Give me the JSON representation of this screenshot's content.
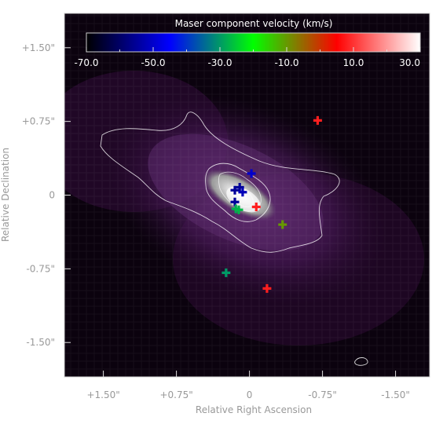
{
  "chart_data": {
    "type": "scatter",
    "title": "",
    "xlabel": "Relative Right Ascension",
    "ylabel": "Relative Declination",
    "xlim": [
      1.9,
      -1.85
    ],
    "ylim": [
      -1.85,
      1.85
    ],
    "x_inverted": true,
    "x_ticks": [
      {
        "value": 1.5,
        "label": "+1.50\""
      },
      {
        "value": 0.75,
        "label": "+0.75\""
      },
      {
        "value": 0,
        "label": "0"
      },
      {
        "value": -0.75,
        "label": "-0.75\""
      },
      {
        "value": -1.5,
        "label": "-1.50\""
      }
    ],
    "y_ticks": [
      {
        "value": 1.5,
        "label": "+1.50\""
      },
      {
        "value": 0.75,
        "label": "+0.75\""
      },
      {
        "value": 0,
        "label": "0"
      },
      {
        "value": -0.75,
        "label": "-0.75\""
      },
      {
        "value": -1.5,
        "label": "-1.50\""
      }
    ],
    "colorbar": {
      "title": "Maser component velocity (km/s)",
      "range": [
        -70,
        30
      ],
      "ticks": [
        "-70.0",
        "-50.0",
        "-30.0",
        "-10.0",
        "10.0",
        "30.0"
      ],
      "colormap": [
        "#000000",
        "#0000ff",
        "#00ff00",
        "#ff0000",
        "#ffffff"
      ],
      "placement": "top"
    },
    "background": {
      "type": "continuum image",
      "colormap": [
        "#000000",
        "#4a1a5a",
        "#8a8a8a",
        "#ffffff"
      ],
      "contours": "white"
    },
    "points": [
      {
        "x": 0.15,
        "y": 0.05,
        "velocity": -55
      },
      {
        "x": 0.1,
        "y": 0.08,
        "velocity": -55
      },
      {
        "x": 0.07,
        "y": 0.03,
        "velocity": -52
      },
      {
        "x": 0.15,
        "y": -0.07,
        "velocity": -55
      },
      {
        "x": -0.02,
        "y": 0.22,
        "velocity": -50
      },
      {
        "x": 0.14,
        "y": -0.14,
        "velocity": -28
      },
      {
        "x": 0.11,
        "y": -0.15,
        "velocity": -27
      },
      {
        "x": -0.07,
        "y": -0.12,
        "velocity": 8
      },
      {
        "x": -0.34,
        "y": -0.3,
        "velocity": -10
      },
      {
        "x": -0.7,
        "y": 0.76,
        "velocity": 8
      },
      {
        "x": 0.24,
        "y": -0.79,
        "velocity": -30
      },
      {
        "x": -0.18,
        "y": -0.95,
        "velocity": 8
      }
    ]
  }
}
